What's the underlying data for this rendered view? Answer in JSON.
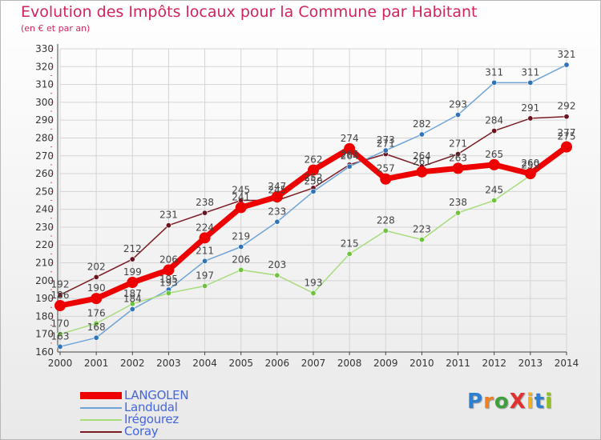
{
  "title": "Evolution des Impôts locaux pour la Commune par Habitant",
  "subtitle": "(en € et par an)",
  "logo": {
    "text": "ProXiti",
    "letters": [
      {
        "ch": "P",
        "color": "#2f7fd0"
      },
      {
        "ch": "r",
        "color": "#f08020"
      },
      {
        "ch": "o",
        "color": "#3f9f3f"
      },
      {
        "ch": "X",
        "color": "#e03030"
      },
      {
        "ch": "i",
        "color": "#f0b020"
      },
      {
        "ch": "t",
        "color": "#2f7fd0"
      },
      {
        "ch": "i",
        "color": "#8fbf20"
      }
    ]
  },
  "chart_data": {
    "type": "line",
    "title": "Evolution des Impôts locaux pour la Commune par Habitant",
    "ylabel": "(en € et par an)",
    "x": [
      2000,
      2001,
      2002,
      2003,
      2004,
      2005,
      2006,
      2007,
      2008,
      2009,
      2010,
      2011,
      2012,
      2013,
      2014
    ],
    "ylim": [
      160,
      330
    ],
    "yticks": [
      160,
      170,
      180,
      190,
      200,
      210,
      220,
      230,
      240,
      250,
      260,
      270,
      280,
      290,
      300,
      310,
      320,
      330
    ],
    "grid": true,
    "legend": "bottom-left",
    "series": [
      {
        "name": "Coray",
        "color": "#7a1c24",
        "point_color": "#6a1420",
        "values": [
          192,
          202,
          212,
          231,
          238,
          245,
          245,
          252,
          265,
          271,
          264,
          271,
          284,
          291,
          292
        ]
      },
      {
        "name": "Landudal",
        "color": "#6fa4d8",
        "point_color": "#2f74b8",
        "values": [
          163,
          168,
          184,
          195,
          211,
          219,
          233,
          250,
          264,
          273,
          282,
          293,
          311,
          311,
          321
        ]
      },
      {
        "name": "Irégourez",
        "color": "#a6dc7c",
        "point_color": "#6dc43c",
        "values": [
          170,
          176,
          187,
          193,
          197,
          206,
          203,
          193,
          215,
          228,
          223,
          238,
          245,
          259,
          277
        ]
      },
      {
        "name": "LANGOLEN",
        "color": "#ee0000",
        "point_color": "#ee0000",
        "values": [
          186,
          190,
          199,
          206,
          224,
          241,
          247,
          262,
          274,
          257,
          261,
          263,
          265,
          260,
          275
        ]
      }
    ]
  }
}
